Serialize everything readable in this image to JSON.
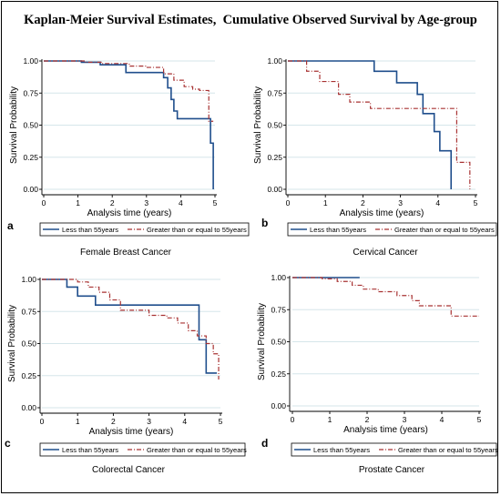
{
  "title": "Kaplan-Meier Survival Estimates,  Cumulative Observed Survival by Age-group",
  "colors": {
    "series_young": "#1f4e8c",
    "series_old": "#a83232",
    "grid": "#d5e6ea",
    "axis": "#000000"
  },
  "chart_data": [
    {
      "type": "line",
      "panel_letter": "a",
      "subtitle": "Female Breast Cancer",
      "xlabel": "Analysis time (years)",
      "ylabel": "Survival Probability",
      "xlim": [
        0,
        5
      ],
      "ylim": [
        0,
        1
      ],
      "xticks": [
        "0",
        "1",
        "2",
        "3",
        "4",
        "5"
      ],
      "yticks": [
        "0.00",
        "0.25",
        "0.50",
        "0.75",
        "1.00"
      ],
      "grid": true,
      "legend_position": "bottom",
      "series": [
        {
          "name": "Less than 55years",
          "style": "solid",
          "step": true,
          "x": [
            0,
            1.1,
            1.65,
            2.4,
            3.0,
            3.5,
            3.62,
            3.72,
            3.8,
            3.9,
            4.75,
            4.87,
            4.95
          ],
          "y": [
            1.0,
            0.99,
            0.97,
            0.91,
            0.91,
            0.87,
            0.79,
            0.7,
            0.61,
            0.55,
            0.55,
            0.36,
            0.0
          ]
        },
        {
          "name": "Greater than or equal to 55years",
          "style": "dashdot",
          "step": true,
          "x": [
            0,
            1.2,
            1.7,
            2.5,
            3.0,
            3.5,
            3.8,
            4.1,
            4.35,
            4.55,
            4.82,
            4.95
          ],
          "y": [
            1.0,
            0.99,
            0.98,
            0.96,
            0.95,
            0.9,
            0.85,
            0.8,
            0.78,
            0.77,
            0.53,
            0.53
          ]
        }
      ]
    },
    {
      "type": "line",
      "panel_letter": "b",
      "subtitle": "Cervical Cancer",
      "xlabel": "Analysis time (years)",
      "ylabel": "Survival Probability",
      "xlim": [
        0,
        5
      ],
      "ylim": [
        0,
        1
      ],
      "xticks": [
        "0",
        "1",
        "2",
        "3",
        "4",
        "5"
      ],
      "yticks": [
        "0.00",
        "0.25",
        "0.50",
        "0.75",
        "1.00"
      ],
      "grid": true,
      "legend_position": "bottom",
      "series": [
        {
          "name": "Less than 55years",
          "style": "solid",
          "step": true,
          "x": [
            0,
            2.3,
            2.9,
            3.45,
            3.6,
            3.9,
            4.05,
            4.35
          ],
          "y": [
            1.0,
            0.92,
            0.83,
            0.74,
            0.59,
            0.45,
            0.3,
            0.0
          ]
        },
        {
          "name": "Greater than or equal to 55years",
          "style": "dashdot",
          "step": true,
          "x": [
            0,
            0.5,
            0.85,
            1.35,
            1.65,
            2.2,
            4.5,
            4.75,
            4.85
          ],
          "y": [
            1.0,
            0.92,
            0.84,
            0.74,
            0.68,
            0.63,
            0.21,
            0.21,
            0.0
          ]
        }
      ]
    },
    {
      "type": "line",
      "panel_letter": "c",
      "subtitle": "Colorectal Cancer",
      "xlabel": "Analysis time (years)",
      "ylabel": "Survival Probability",
      "xlim": [
        0,
        5
      ],
      "ylim": [
        0,
        1
      ],
      "xticks": [
        "0",
        "1",
        "2",
        "3",
        "4",
        "5"
      ],
      "yticks": [
        "0.00",
        "0.25",
        "0.50",
        "0.75",
        "1.00"
      ],
      "grid": true,
      "legend_position": "bottom",
      "series": [
        {
          "name": "Less than 55years",
          "style": "solid",
          "step": true,
          "x": [
            0,
            0.7,
            1.0,
            1.5,
            4.4,
            4.6,
            4.9
          ],
          "y": [
            1.0,
            0.94,
            0.87,
            0.8,
            0.53,
            0.27,
            0.27
          ]
        },
        {
          "name": "Greater than or equal to 55years",
          "style": "dashdot",
          "step": true,
          "x": [
            0,
            1.0,
            1.3,
            1.6,
            1.9,
            2.2,
            3.0,
            3.5,
            3.8,
            4.1,
            4.35,
            4.6,
            4.8,
            4.95
          ],
          "y": [
            1.0,
            0.98,
            0.94,
            0.9,
            0.84,
            0.76,
            0.72,
            0.7,
            0.66,
            0.6,
            0.56,
            0.5,
            0.42,
            0.22
          ]
        }
      ]
    },
    {
      "type": "line",
      "panel_letter": "d",
      "subtitle": "Prostate Cancer",
      "xlabel": "Analysis time (years)",
      "ylabel": "Survival Probability",
      "xlim": [
        0,
        5
      ],
      "ylim": [
        0,
        1
      ],
      "xticks": [
        "0",
        "1",
        "2",
        "3",
        "4",
        "5"
      ],
      "yticks": [
        "0.00",
        "0.25",
        "0.50",
        "0.75",
        "1.00"
      ],
      "grid": true,
      "legend_position": "bottom",
      "series": [
        {
          "name": "Less than 55years",
          "style": "solid",
          "step": true,
          "x": [
            0,
            1.8
          ],
          "y": [
            1.0,
            1.0
          ]
        },
        {
          "name": "Greater than or equal to 55years",
          "style": "dashdot",
          "step": true,
          "x": [
            0,
            0.8,
            1.2,
            1.6,
            1.9,
            2.3,
            2.8,
            3.2,
            3.4,
            4.25,
            5.0
          ],
          "y": [
            1.0,
            0.99,
            0.97,
            0.94,
            0.91,
            0.89,
            0.86,
            0.82,
            0.78,
            0.7,
            0.7
          ]
        }
      ]
    }
  ]
}
